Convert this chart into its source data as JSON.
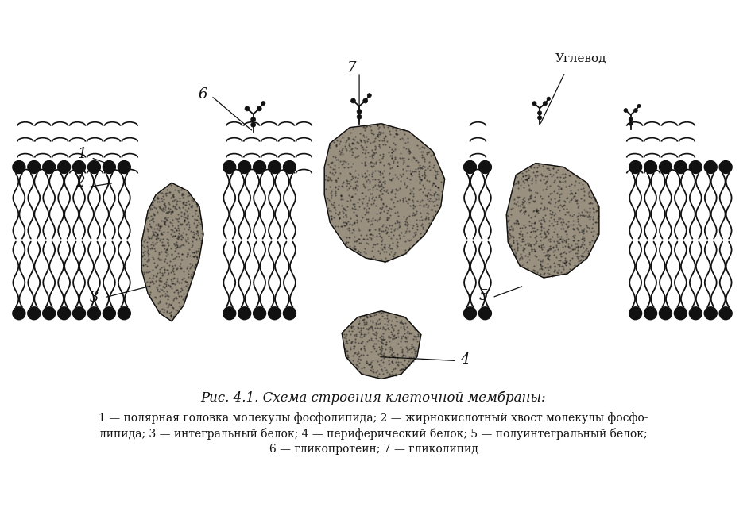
{
  "title": "Рис. 4.1. Схема строения клеточной мембраны:",
  "cap1": "1 — полярная головка молекулы фосфолипида; 2 — жирнокислотный хвост молекулы фосфо-",
  "cap2": "липида; 3 — интегральный белок; 4 — периферический белок; 5 — полуинтегральный белок;",
  "cap3": "6 — гликопротеин; 7 — гликолипид",
  "figsize": [
    9.4,
    6.69
  ],
  "dpi": 100
}
